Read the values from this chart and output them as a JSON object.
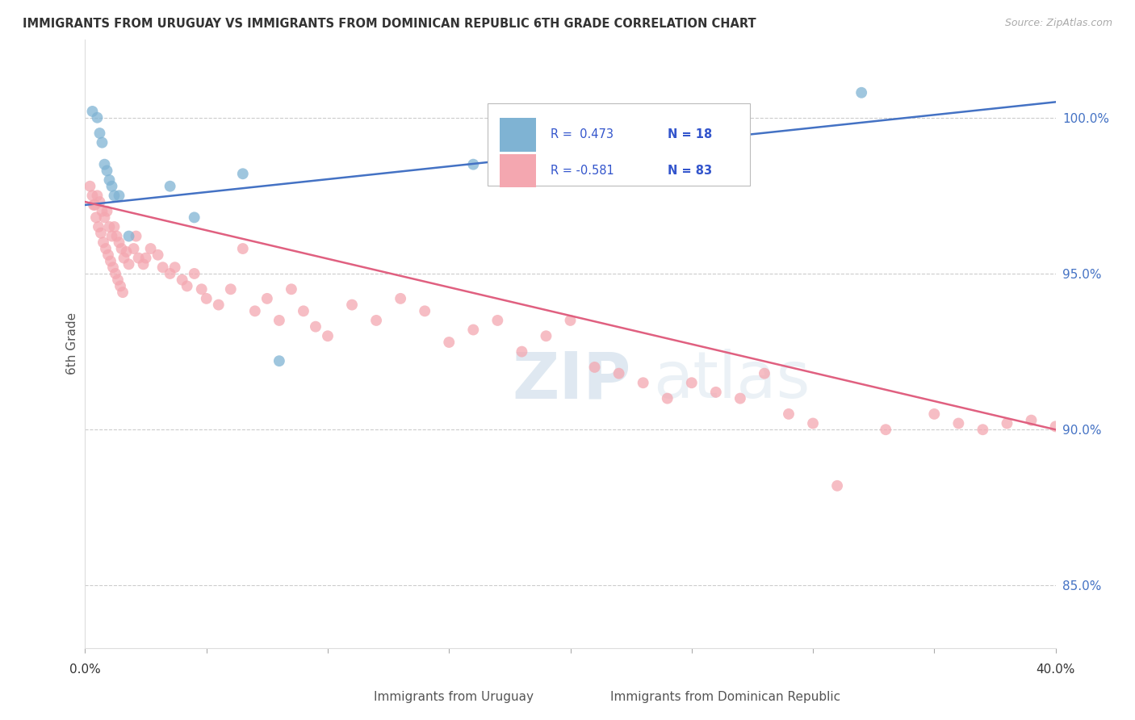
{
  "title": "IMMIGRANTS FROM URUGUAY VS IMMIGRANTS FROM DOMINICAN REPUBLIC 6TH GRADE CORRELATION CHART",
  "source": "Source: ZipAtlas.com",
  "ylabel": "6th Grade",
  "yticks": [
    85.0,
    90.0,
    95.0,
    100.0
  ],
  "ytick_labels": [
    "85.0%",
    "90.0%",
    "95.0%",
    "100.0%"
  ],
  "xlim": [
    0.0,
    40.0
  ],
  "ylim": [
    83.0,
    102.5
  ],
  "blue_color": "#7FB3D3",
  "pink_color": "#F4A7B0",
  "line_blue": "#4472C4",
  "line_pink": "#E06080",
  "uruguay_x": [
    0.3,
    0.5,
    0.6,
    0.7,
    0.8,
    0.9,
    1.0,
    1.1,
    1.2,
    1.4,
    1.8,
    3.5,
    4.5,
    6.5,
    8.0,
    16.0,
    32.0
  ],
  "uruguay_y": [
    100.2,
    100.0,
    99.5,
    99.2,
    98.5,
    98.3,
    98.0,
    97.8,
    97.5,
    97.5,
    96.2,
    97.8,
    96.8,
    98.2,
    92.2,
    98.5,
    100.8
  ],
  "dr_x": [
    0.2,
    0.3,
    0.4,
    0.5,
    0.6,
    0.7,
    0.8,
    0.9,
    1.0,
    1.1,
    1.2,
    1.3,
    1.4,
    1.5,
    1.6,
    1.7,
    1.8,
    2.0,
    2.1,
    2.2,
    2.4,
    2.5,
    2.7,
    3.0,
    3.2,
    3.5,
    3.7,
    4.0,
    4.2,
    4.5,
    4.8,
    5.0,
    5.5,
    6.0,
    6.5,
    7.0,
    7.5,
    8.0,
    8.5,
    9.0,
    9.5,
    10.0,
    11.0,
    12.0,
    13.0,
    14.0,
    15.0,
    16.0,
    17.0,
    18.0,
    19.0,
    20.0,
    21.0,
    22.0,
    23.0,
    24.0,
    25.0,
    26.0,
    27.0,
    28.0,
    29.0,
    30.0,
    31.0,
    33.0,
    35.0,
    36.0,
    37.0,
    38.0,
    39.0,
    40.0,
    0.35,
    0.45,
    0.55,
    0.65,
    0.75,
    0.85,
    0.95,
    1.05,
    1.15,
    1.25,
    1.35,
    1.45,
    1.55
  ],
  "dr_y": [
    97.8,
    97.5,
    97.2,
    97.5,
    97.3,
    97.0,
    96.8,
    97.0,
    96.5,
    96.2,
    96.5,
    96.2,
    96.0,
    95.8,
    95.5,
    95.7,
    95.3,
    95.8,
    96.2,
    95.5,
    95.3,
    95.5,
    95.8,
    95.6,
    95.2,
    95.0,
    95.2,
    94.8,
    94.6,
    95.0,
    94.5,
    94.2,
    94.0,
    94.5,
    95.8,
    93.8,
    94.2,
    93.5,
    94.5,
    93.8,
    93.3,
    93.0,
    94.0,
    93.5,
    94.2,
    93.8,
    92.8,
    93.2,
    93.5,
    92.5,
    93.0,
    93.5,
    92.0,
    91.8,
    91.5,
    91.0,
    91.5,
    91.2,
    91.0,
    91.8,
    90.5,
    90.2,
    88.2,
    90.0,
    90.5,
    90.2,
    90.0,
    90.2,
    90.3,
    90.1,
    97.2,
    96.8,
    96.5,
    96.3,
    96.0,
    95.8,
    95.6,
    95.4,
    95.2,
    95.0,
    94.8,
    94.6,
    94.4
  ],
  "blue_line_x": [
    0.0,
    40.0
  ],
  "blue_line_y": [
    97.2,
    100.5
  ],
  "pink_line_x": [
    0.0,
    40.0
  ],
  "pink_line_y": [
    97.3,
    90.0
  ]
}
